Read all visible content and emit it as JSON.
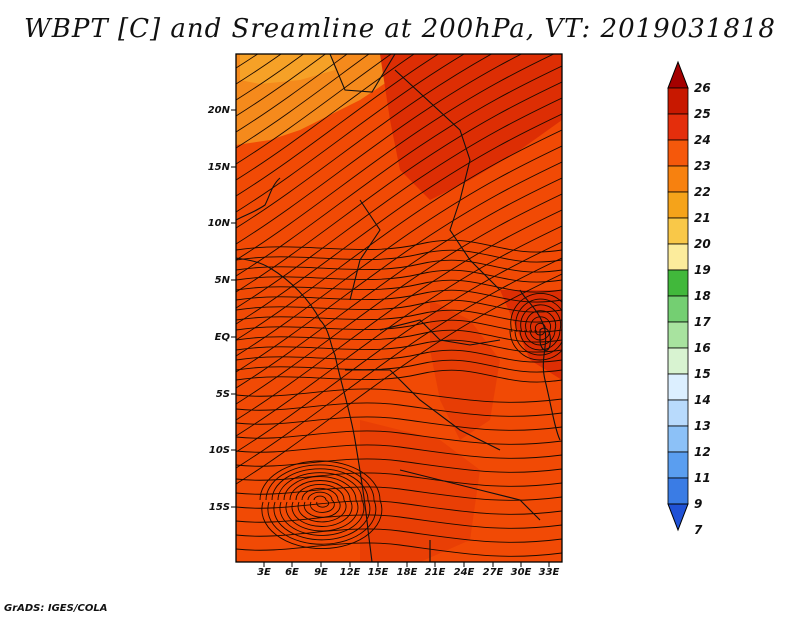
{
  "title": "WBPT [C] and Sreamline at 200hPa, VT: 2019031818",
  "credit": "GrADS: IGES/COLA",
  "map": {
    "lat_labels": [
      "20N",
      "15N",
      "10N",
      "5N",
      "EQ",
      "5S",
      "10S",
      "15S"
    ],
    "lon_labels": [
      "3E",
      "6E",
      "9E",
      "12E",
      "15E",
      "18E",
      "21E",
      "24E",
      "27E",
      "30E",
      "33E"
    ],
    "fill_colors": {
      "dominant": "#f14a05",
      "warm_band": "#dd2e04",
      "cool_north": "#f58a1c",
      "orange": "#f6a127"
    }
  },
  "colorbar": {
    "labels": [
      "26",
      "25",
      "24",
      "23",
      "22",
      "21",
      "20",
      "19",
      "18",
      "17",
      "16",
      "15",
      "14",
      "13",
      "12",
      "11",
      "9",
      "7"
    ],
    "colors": [
      "#a40000",
      "#c81800",
      "#e42e0c",
      "#f5580b",
      "#f7810f",
      "#f5a31a",
      "#f9c848",
      "#fcec9c",
      "#41b83b",
      "#74cf72",
      "#a8e39f",
      "#d8f3d1",
      "#dcefff",
      "#b8dafc",
      "#8cc1f7",
      "#5a9ef0",
      "#3a7ce5",
      "#2052d6"
    ]
  }
}
